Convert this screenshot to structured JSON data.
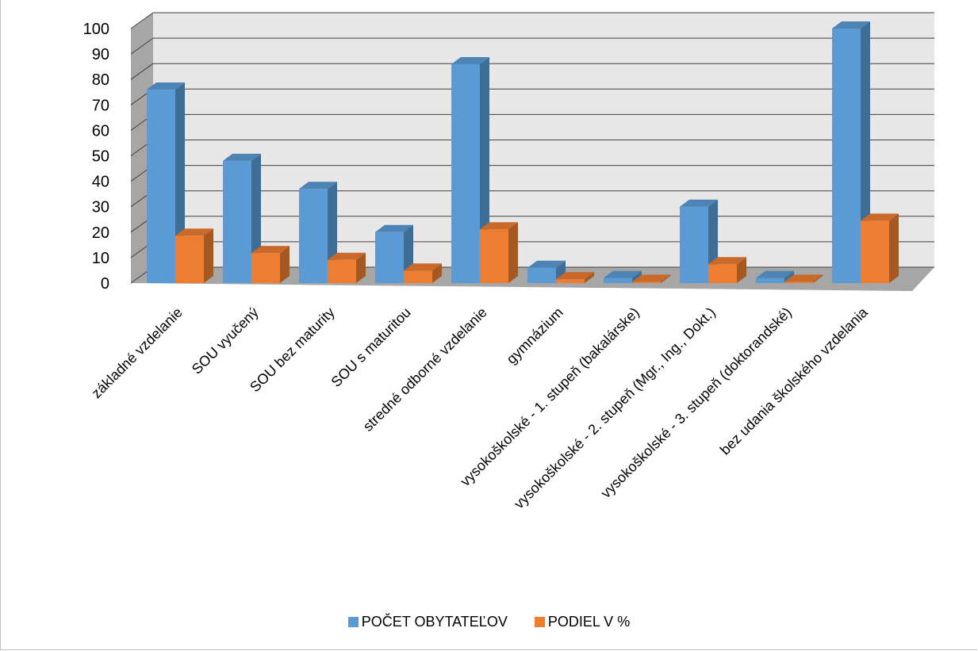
{
  "chart_data": {
    "type": "bar",
    "categories": [
      "základné vzdelanie",
      "SOU vyučený",
      "SOU bez maturity",
      "SOU s maturitou",
      "stredné odborné vzdelanie",
      "gymnázium",
      "vysokoškolské -  1. stupeň (bakalárske)",
      "vysokoškolské -  2. stupeň (Mgr., Ing., Dokt.)",
      "vysokoškolské - 3. stupeň (doktorandské)",
      "bez udania školského vzdelania"
    ],
    "series": [
      {
        "name": "POČET OBYTATEĽOV",
        "values": [
          76,
          48,
          37,
          20,
          86,
          6,
          2,
          30,
          2,
          100
        ]
      },
      {
        "name": "PODIEL V %",
        "values": [
          18.6,
          11.8,
          9.1,
          4.9,
          21.1,
          1.5,
          0.5,
          7.4,
          0.5,
          24.5
        ]
      }
    ],
    "yticks": [
      "0",
      "10",
      "20",
      "30",
      "40",
      "50",
      "60",
      "70",
      "80",
      "90",
      "100"
    ],
    "ylim": [
      0,
      100
    ],
    "grid": true,
    "legend_position": "bottom",
    "colors": {
      "series1": "#5b9bd5",
      "series2": "#ed7d31",
      "grid": "#404040",
      "wall": "#e7e7e7",
      "floor": "#a6a6a6"
    }
  }
}
